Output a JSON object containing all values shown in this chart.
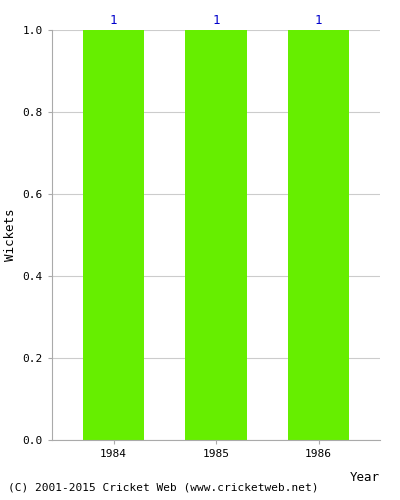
{
  "years": [
    1984,
    1985,
    1986
  ],
  "values": [
    1,
    1,
    1
  ],
  "bar_color": "#66ee00",
  "bar_width": 0.6,
  "xlabel": "Year",
  "ylabel": "Wickets",
  "ylim": [
    0,
    1.0
  ],
  "yticks": [
    0.0,
    0.2,
    0.4,
    0.6,
    0.8,
    1.0
  ],
  "label_color": "#0000cc",
  "label_fontsize": 9,
  "axis_label_fontsize": 9,
  "tick_fontsize": 8,
  "grid_color": "#cccccc",
  "background_color": "#ffffff",
  "footer_text": "(C) 2001-2015 Cricket Web (www.cricketweb.net)",
  "footer_fontsize": 8
}
